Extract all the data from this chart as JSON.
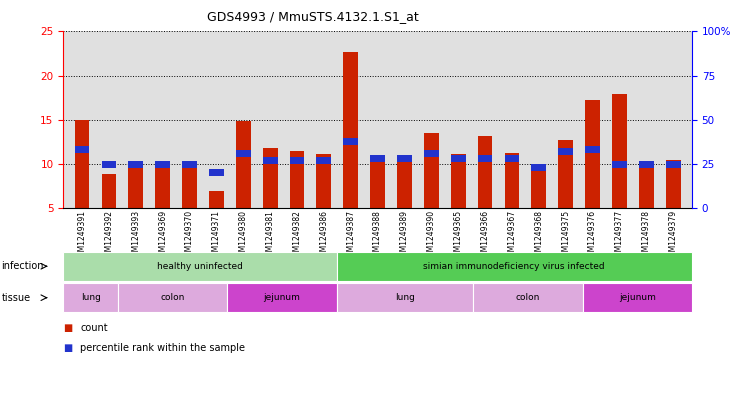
{
  "title": "GDS4993 / MmuSTS.4132.1.S1_at",
  "samples": [
    "GSM1249391",
    "GSM1249392",
    "GSM1249393",
    "GSM1249369",
    "GSM1249370",
    "GSM1249371",
    "GSM1249380",
    "GSM1249381",
    "GSM1249382",
    "GSM1249386",
    "GSM1249387",
    "GSM1249388",
    "GSM1249389",
    "GSM1249390",
    "GSM1249365",
    "GSM1249366",
    "GSM1249367",
    "GSM1249368",
    "GSM1249375",
    "GSM1249376",
    "GSM1249377",
    "GSM1249378",
    "GSM1249379"
  ],
  "counts": [
    15.0,
    8.9,
    9.5,
    9.8,
    9.7,
    7.0,
    14.9,
    11.8,
    11.5,
    11.1,
    22.7,
    11.0,
    10.8,
    13.5,
    11.1,
    13.2,
    11.2,
    9.2,
    12.7,
    17.3,
    17.9,
    9.8,
    10.5
  ],
  "percentiles": [
    33,
    25,
    25,
    25,
    25,
    20,
    31,
    27,
    27,
    27,
    38,
    28,
    28,
    31,
    28,
    28,
    28,
    23,
    32,
    33,
    25,
    25,
    25
  ],
  "bar_color": "#cc2200",
  "pct_color": "#2233cc",
  "bg_color": "#e0e0e0",
  "ylim_left": [
    5,
    25
  ],
  "ylim_right": [
    0,
    100
  ],
  "yticks_left": [
    5,
    10,
    15,
    20,
    25
  ],
  "yticks_right": [
    0,
    25,
    50,
    75,
    100
  ],
  "ytick_labels_right": [
    "0",
    "25",
    "50",
    "75",
    "100%"
  ],
  "infection_groups": [
    {
      "label": "healthy uninfected",
      "start": 0,
      "end": 10,
      "color": "#aaddaa"
    },
    {
      "label": "simian immunodeficiency virus infected",
      "start": 10,
      "end": 23,
      "color": "#55cc55"
    }
  ],
  "tissue_groups": [
    {
      "label": "lung",
      "start": 0,
      "end": 2,
      "color": "#ddaadd"
    },
    {
      "label": "colon",
      "start": 2,
      "end": 6,
      "color": "#ddaadd"
    },
    {
      "label": "jejunum",
      "start": 6,
      "end": 10,
      "color": "#cc44cc"
    },
    {
      "label": "lung",
      "start": 10,
      "end": 15,
      "color": "#ddaadd"
    },
    {
      "label": "colon",
      "start": 15,
      "end": 19,
      "color": "#ddaadd"
    },
    {
      "label": "jejunum",
      "start": 19,
      "end": 23,
      "color": "#cc44cc"
    }
  ]
}
